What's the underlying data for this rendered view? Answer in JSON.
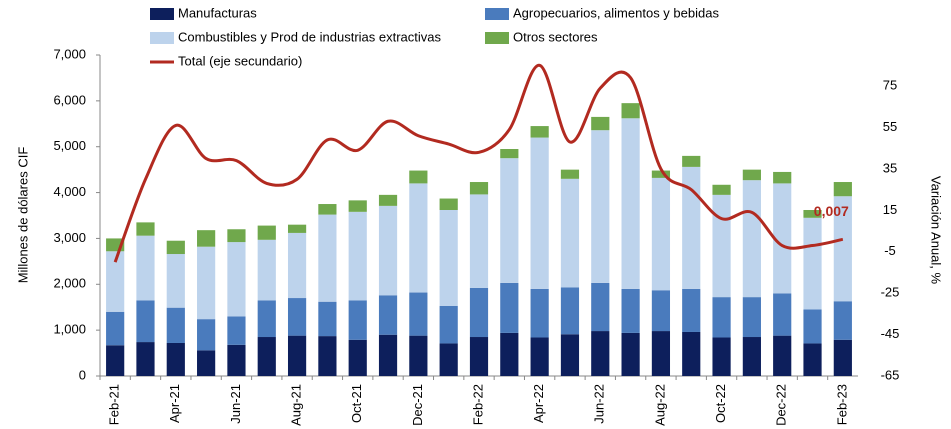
{
  "chart_data": {
    "type": "bar_line",
    "y_label": "Millones de dólares CIF",
    "y2_label": "Variación Anual, %",
    "categories": [
      "Feb-21",
      null,
      "Apr-21",
      null,
      "Jun-21",
      null,
      "Aug-21",
      null,
      "Oct-21",
      null,
      "Dec-21",
      null,
      "Feb-22",
      null,
      "Apr-22",
      null,
      "Jun-22",
      null,
      "Aug-22",
      null,
      "Oct-22",
      null,
      "Dec-22",
      null,
      "Feb-23"
    ],
    "series": [
      {
        "name": "Manufacturas",
        "color": "#0d1f5c",
        "values": [
          670,
          740,
          720,
          560,
          680,
          850,
          880,
          870,
          790,
          900,
          880,
          710,
          850,
          940,
          840,
          910,
          980,
          940,
          980,
          960,
          840,
          850,
          880,
          710,
          790
        ]
      },
      {
        "name": "Agropecuarios, alimentos y bebidas",
        "color": "#4a7bbd",
        "values": [
          730,
          910,
          770,
          680,
          620,
          800,
          820,
          750,
          860,
          860,
          940,
          820,
          1070,
          1090,
          1060,
          1020,
          1050,
          960,
          890,
          940,
          880,
          870,
          920,
          740,
          840
        ]
      },
      {
        "name": "Combustibles y Prod de industrias extractivas",
        "color": "#bdd3ec",
        "values": [
          1320,
          1410,
          1170,
          1580,
          1620,
          1320,
          1420,
          1900,
          1930,
          1950,
          2380,
          2090,
          2040,
          2720,
          3300,
          2370,
          3330,
          3720,
          2450,
          2660,
          2230,
          2550,
          2400,
          2000,
          2290
        ]
      },
      {
        "name": "Otros sectores",
        "color": "#70a84c",
        "values": [
          280,
          290,
          290,
          360,
          280,
          310,
          180,
          230,
          250,
          240,
          280,
          250,
          270,
          200,
          250,
          200,
          290,
          330,
          160,
          240,
          220,
          230,
          250,
          170,
          310
        ]
      },
      {
        "name": "Total (eje secundario)",
        "color": "#b22a20",
        "axis": "y2",
        "values": [
          -10,
          30,
          56,
          40,
          39,
          28,
          30,
          49,
          44,
          58,
          51,
          47,
          43,
          54,
          85,
          48,
          74,
          79,
          35,
          25,
          11,
          14,
          -2,
          -2,
          1
        ]
      }
    ],
    "annotations": [
      {
        "text": "0,007"
      }
    ],
    "ylim": [
      0,
      7000
    ],
    "yticks": [
      0,
      {
        "value": 1000,
        "label": "1,000"
      },
      {
        "value": 2000,
        "label": "2,000"
      },
      {
        "value": 3000,
        "label": "3,000"
      },
      {
        "value": 4000,
        "label": "4,000"
      },
      {
        "value": 5000,
        "label": "5,000"
      },
      {
        "value": 6000,
        "label": "6,000"
      },
      {
        "value": 7000,
        "label": "7,000"
      }
    ],
    "y2lim": [
      -65,
      90
    ],
    "y2ticks": [
      -65,
      -45,
      -25,
      -5,
      15,
      35,
      55,
      75
    ]
  }
}
